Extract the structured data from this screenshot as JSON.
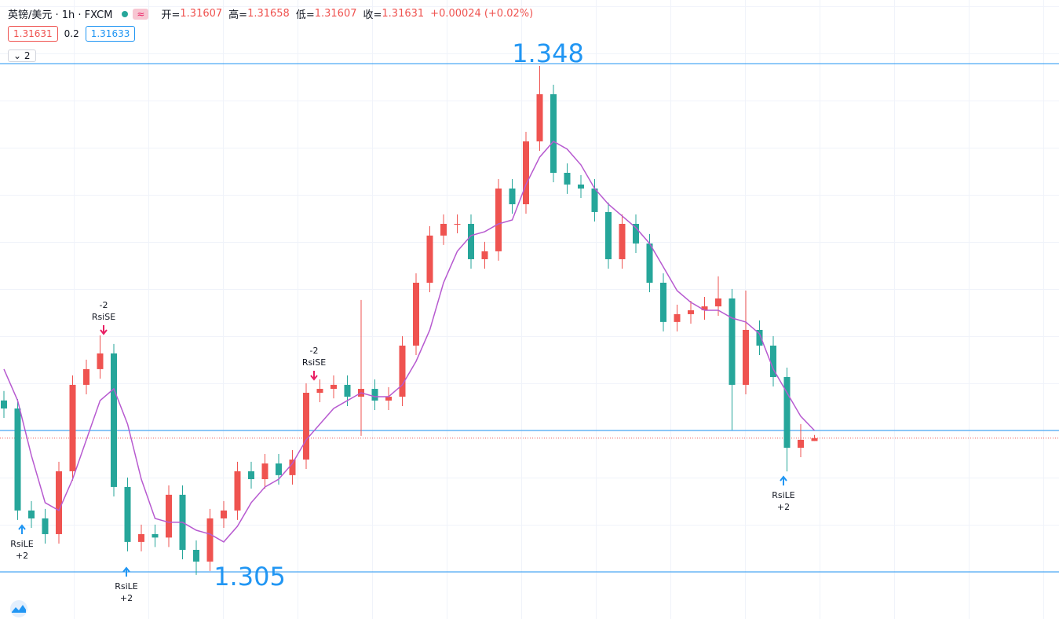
{
  "header": {
    "symbol": "英镑/美元 · 1h · FXCM",
    "wave": "≈",
    "ohlc_labels": [
      "开=",
      "高=",
      "低=",
      "收="
    ],
    "change": "+0.00024",
    "change_pct": "(+0.02%)",
    "sell": "1.31631",
    "spread": "0.2",
    "buy": "1.31633",
    "indicators": "2"
  },
  "chart_data": {
    "type": "candlestick",
    "open": [
      1.3195,
      1.31882,
      1.31019,
      1.30952,
      1.30819,
      1.31351,
      1.32082,
      1.32215,
      1.32348,
      1.31218,
      1.30753,
      1.30819,
      1.3079,
      1.31152,
      1.30686,
      1.30587,
      1.30952,
      1.31019,
      1.31351,
      1.31284,
      1.31417,
      1.31318,
      1.3145,
      1.32015,
      1.32048,
      1.32082,
      1.31982,
      1.32048,
      1.31949,
      1.31982,
      1.32414,
      1.32946,
      1.33345,
      1.33444,
      1.33444,
      1.33145,
      1.33212,
      1.33743,
      1.3361,
      1.34142,
      1.34541,
      1.33876,
      1.33777,
      1.33743,
      1.33544,
      1.33145,
      1.33444,
      1.33278,
      1.32946,
      1.32614,
      1.3268,
      1.32713,
      1.32746,
      1.32813,
      1.32082,
      1.32547,
      1.32414,
      1.32148,
      1.3155,
      1.31607
    ],
    "high": [
      1.3203,
      1.31962,
      1.31099,
      1.31032,
      1.31431,
      1.32162,
      1.32295,
      1.325,
      1.32428,
      1.31298,
      1.30899,
      1.30899,
      1.31232,
      1.31232,
      1.30766,
      1.31032,
      1.31099,
      1.31431,
      1.31431,
      1.31497,
      1.31497,
      1.3153,
      1.32095,
      1.32128,
      1.32162,
      1.32162,
      1.328,
      1.32128,
      1.32062,
      1.32494,
      1.33026,
      1.33425,
      1.33524,
      1.33524,
      1.33524,
      1.33292,
      1.33823,
      1.33823,
      1.34222,
      1.3478,
      1.34621,
      1.33956,
      1.33857,
      1.33823,
      1.33624,
      1.33524,
      1.33524,
      1.33358,
      1.33026,
      1.3276,
      1.32793,
      1.32826,
      1.33,
      1.32893,
      1.3288,
      1.32627,
      1.32494,
      1.32228,
      1.3175,
      1.31658
    ],
    "low": [
      1.31802,
      1.30939,
      1.30872,
      1.30739,
      1.30739,
      1.31271,
      1.32002,
      1.32135,
      1.31138,
      1.30673,
      1.30673,
      1.3071,
      1.3071,
      1.30606,
      1.30474,
      1.30507,
      1.30872,
      1.30939,
      1.31204,
      1.31204,
      1.31238,
      1.31238,
      1.3137,
      1.31935,
      1.31968,
      1.31902,
      1.3165,
      1.31869,
      1.31869,
      1.31902,
      1.32334,
      1.32866,
      1.33265,
      1.33364,
      1.33065,
      1.33065,
      1.33132,
      1.3353,
      1.3353,
      1.34062,
      1.33796,
      1.33697,
      1.33663,
      1.33464,
      1.33065,
      1.33065,
      1.33198,
      1.32866,
      1.32534,
      1.32534,
      1.326,
      1.32633,
      1.32666,
      1.317,
      1.32002,
      1.32334,
      1.32068,
      1.3135,
      1.3147,
      1.31607
    ],
    "close": [
      1.31882,
      1.31019,
      1.30952,
      1.30819,
      1.31351,
      1.32082,
      1.32215,
      1.32348,
      1.31218,
      1.30753,
      1.30819,
      1.3079,
      1.31152,
      1.30686,
      1.30587,
      1.30952,
      1.31019,
      1.31351,
      1.31284,
      1.31417,
      1.31318,
      1.3145,
      1.32015,
      1.32048,
      1.32082,
      1.31982,
      1.32048,
      1.31949,
      1.31982,
      1.32414,
      1.32946,
      1.33345,
      1.33444,
      1.33444,
      1.33145,
      1.33212,
      1.33743,
      1.3361,
      1.34142,
      1.34541,
      1.33876,
      1.33777,
      1.33743,
      1.33544,
      1.33145,
      1.33444,
      1.33278,
      1.32946,
      1.32614,
      1.3268,
      1.32713,
      1.32746,
      1.32813,
      1.32082,
      1.32547,
      1.32414,
      1.32148,
      1.3155,
      1.31617,
      1.31631
    ],
    "ma": [
      1.32215,
      1.31949,
      1.31484,
      1.31085,
      1.31019,
      1.31284,
      1.31617,
      1.31949,
      1.32049,
      1.3175,
      1.31284,
      1.30952,
      1.30919,
      1.30919,
      1.30852,
      1.30819,
      1.30753,
      1.30886,
      1.31085,
      1.31218,
      1.31284,
      1.31417,
      1.31617,
      1.3175,
      1.31882,
      1.31949,
      1.32015,
      1.31982,
      1.31982,
      1.32082,
      1.32281,
      1.32547,
      1.32946,
      1.33212,
      1.33345,
      1.33378,
      1.33444,
      1.33477,
      1.33777,
      1.34009,
      1.34142,
      1.34076,
      1.33943,
      1.33743,
      1.3361,
      1.33511,
      1.33411,
      1.33278,
      1.33079,
      1.32879,
      1.3278,
      1.32713,
      1.32713,
      1.32647,
      1.32614,
      1.32514,
      1.32215,
      1.32015,
      1.31816,
      1.31696
    ],
    "ma_color": "#b75ad0",
    "up_color": "#ef5350",
    "down_color": "#26a69a",
    "levels": [
      1.348,
      1.305,
      1.31696
    ],
    "level_color": "#2196f3",
    "last_color": "#ef5350",
    "ylim": [
      1.30101,
      1.35338
    ],
    "signals": [
      {
        "qty": "-2",
        "name": "RsiSE"
      },
      {
        "qty": "-2",
        "name": "RsiSE"
      },
      {
        "name": "RsiLE",
        "qty": "+2"
      },
      {
        "name": "RsiLE",
        "qty": "+2"
      },
      {
        "name": "RsiLE",
        "qty": "+2"
      }
    ]
  }
}
